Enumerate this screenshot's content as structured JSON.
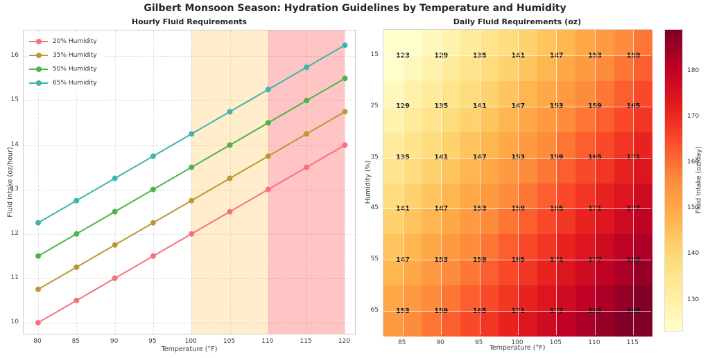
{
  "figure_title": "Gilbert Monsoon Season: Hydration Guidelines by Temperature and Humidity",
  "chart_data": [
    {
      "type": "line",
      "title": "Hourly Fluid Requirements",
      "xlabel": "Temperature (°F)",
      "ylabel": "Fluid Intake (oz/hour)",
      "x": [
        80,
        85,
        90,
        95,
        100,
        105,
        110,
        115,
        120
      ],
      "series": [
        {
          "name": "20% Humidity",
          "color": "#f8707f",
          "values": [
            10.0,
            10.5,
            11.0,
            11.5,
            12.0,
            12.5,
            13.0,
            13.5,
            14.0
          ]
        },
        {
          "name": "35% Humidity",
          "color": "#bd9833",
          "values": [
            10.75,
            11.25,
            11.75,
            12.25,
            12.75,
            13.25,
            13.75,
            14.25,
            14.75
          ]
        },
        {
          "name": "50% Humidity",
          "color": "#4db44a",
          "values": [
            11.5,
            12.0,
            12.5,
            13.0,
            13.5,
            14.0,
            14.5,
            15.0,
            15.5
          ]
        },
        {
          "name": "65% Humidity",
          "color": "#3fb5ab",
          "values": [
            12.25,
            12.75,
            13.25,
            13.75,
            14.25,
            14.75,
            15.25,
            15.75,
            16.25
          ]
        }
      ],
      "xticks": [
        80,
        85,
        90,
        95,
        100,
        105,
        110,
        115,
        120
      ],
      "yticks": [
        10,
        11,
        12,
        13,
        14,
        15,
        16
      ],
      "xlim": [
        78.1,
        121.5
      ],
      "ylim": [
        9.72,
        16.58
      ],
      "grid": true,
      "legend_position": "upper left",
      "shaded_bands": [
        {
          "from": 100,
          "to": 110,
          "color": "rgba(255,165,0,0.20)"
        },
        {
          "from": 110,
          "to": 120,
          "color": "rgba(255,0,0,0.23)"
        }
      ]
    },
    {
      "type": "heatmap",
      "title": "Daily Fluid Requirements (oz)",
      "xlabel": "Temperature (°F)",
      "ylabel": "Humidity (%)",
      "x_categories": [
        85,
        90,
        95,
        100,
        105,
        110,
        115
      ],
      "y_categories": [
        15,
        25,
        35,
        45,
        55,
        65
      ],
      "values": [
        [
          123,
          129,
          135,
          141,
          147,
          153,
          159
        ],
        [
          129,
          135,
          141,
          147,
          153,
          159,
          165
        ],
        [
          135,
          141,
          147,
          153,
          159,
          165,
          171
        ],
        [
          141,
          147,
          153,
          159,
          165,
          171,
          177
        ],
        [
          147,
          153,
          159,
          165,
          171,
          177,
          183
        ],
        [
          153,
          159,
          165,
          171,
          177,
          183,
          189
        ]
      ],
      "vmin": 123,
      "vmax": 189,
      "colormap": "YlOrRd",
      "colormap_stops": [
        [
          0.0,
          "#ffffcc"
        ],
        [
          0.125,
          "#ffeda0"
        ],
        [
          0.25,
          "#fed976"
        ],
        [
          0.375,
          "#feb24c"
        ],
        [
          0.5,
          "#fd8d3c"
        ],
        [
          0.625,
          "#fc4e2a"
        ],
        [
          0.75,
          "#e31a1c"
        ],
        [
          0.875,
          "#bd0026"
        ],
        [
          1.0,
          "#800026"
        ]
      ],
      "colorbar": {
        "label": "Fluid Intake (oz/day)",
        "ticks": [
          130,
          140,
          150,
          160,
          170,
          180
        ]
      }
    }
  ]
}
